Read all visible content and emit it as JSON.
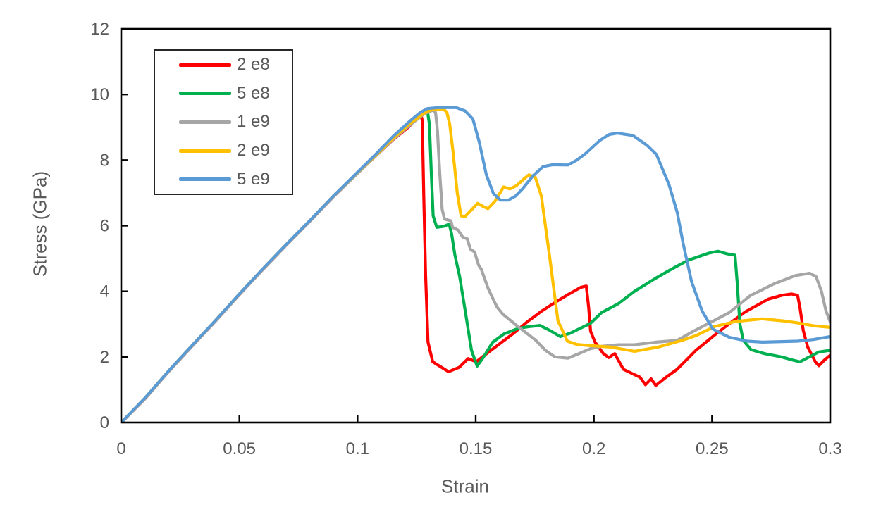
{
  "chart_data": {
    "type": "line",
    "title": "",
    "xlabel": "Strain",
    "ylabel": "Stress (GPa)",
    "xlim": [
      0,
      0.3
    ],
    "ylim": [
      0,
      12
    ],
    "grid": false,
    "legend_position": "top-left-inside",
    "axis_color": "#000000",
    "tick_text_color": "#595959",
    "x_ticks": {
      "values": [
        0,
        0.05,
        0.1,
        0.15,
        0.2,
        0.25,
        0.3
      ],
      "labels": [
        "0",
        "0.05",
        "0.1",
        "0.15",
        "0.2",
        "0.25",
        "0.3"
      ]
    },
    "y_ticks": {
      "values": [
        0,
        2,
        4,
        6,
        8,
        10,
        12
      ],
      "labels": [
        "0",
        "2",
        "4",
        "6",
        "8",
        "10",
        "12"
      ]
    },
    "series": [
      {
        "name": "2 e8",
        "color": "#FF0000",
        "points": [
          [
            0,
            0
          ],
          [
            0.01,
            0.72
          ],
          [
            0.02,
            1.55
          ],
          [
            0.03,
            2.33
          ],
          [
            0.04,
            3.1
          ],
          [
            0.05,
            3.9
          ],
          [
            0.06,
            4.67
          ],
          [
            0.07,
            5.42
          ],
          [
            0.08,
            6.15
          ],
          [
            0.09,
            6.9
          ],
          [
            0.1,
            7.6
          ],
          [
            0.108,
            8.15
          ],
          [
            0.115,
            8.62
          ],
          [
            0.1215,
            9.0
          ],
          [
            0.1252,
            9.3
          ],
          [
            0.1268,
            9.4
          ],
          [
            0.1274,
            9.2
          ],
          [
            0.128,
            7.0
          ],
          [
            0.1288,
            4.5
          ],
          [
            0.1298,
            2.45
          ],
          [
            0.1318,
            1.85
          ],
          [
            0.1385,
            1.55
          ],
          [
            0.143,
            1.68
          ],
          [
            0.1468,
            1.95
          ],
          [
            0.1502,
            1.85
          ],
          [
            0.155,
            2.12
          ],
          [
            0.1605,
            2.42
          ],
          [
            0.166,
            2.72
          ],
          [
            0.172,
            3.08
          ],
          [
            0.178,
            3.4
          ],
          [
            0.184,
            3.68
          ],
          [
            0.1895,
            3.92
          ],
          [
            0.1945,
            4.12
          ],
          [
            0.1968,
            4.16
          ],
          [
            0.1978,
            3.5
          ],
          [
            0.1986,
            2.78
          ],
          [
            0.2005,
            2.45
          ],
          [
            0.204,
            2.1
          ],
          [
            0.2063,
            1.98
          ],
          [
            0.2088,
            2.1
          ],
          [
            0.2125,
            1.62
          ],
          [
            0.216,
            1.5
          ],
          [
            0.2195,
            1.38
          ],
          [
            0.2218,
            1.15
          ],
          [
            0.2242,
            1.33
          ],
          [
            0.2262,
            1.13
          ],
          [
            0.23,
            1.35
          ],
          [
            0.2352,
            1.62
          ],
          [
            0.2432,
            2.2
          ],
          [
            0.2508,
            2.65
          ],
          [
            0.258,
            3.05
          ],
          [
            0.264,
            3.37
          ],
          [
            0.2738,
            3.76
          ],
          [
            0.2796,
            3.88
          ],
          [
            0.2836,
            3.92
          ],
          [
            0.2862,
            3.88
          ],
          [
            0.2872,
            3.5
          ],
          [
            0.2886,
            2.8
          ],
          [
            0.2905,
            2.3
          ],
          [
            0.2937,
            1.85
          ],
          [
            0.2952,
            1.73
          ],
          [
            0.2975,
            1.9
          ],
          [
            0.3,
            2.05
          ]
        ]
      },
      {
        "name": "5 e8",
        "color": "#00B050",
        "points": [
          [
            0,
            0
          ],
          [
            0.01,
            0.73
          ],
          [
            0.02,
            1.56
          ],
          [
            0.03,
            2.34
          ],
          [
            0.04,
            3.11
          ],
          [
            0.05,
            3.91
          ],
          [
            0.06,
            4.68
          ],
          [
            0.07,
            5.43
          ],
          [
            0.08,
            6.16
          ],
          [
            0.09,
            6.91
          ],
          [
            0.1,
            7.61
          ],
          [
            0.108,
            8.16
          ],
          [
            0.115,
            8.64
          ],
          [
            0.122,
            9.07
          ],
          [
            0.127,
            9.38
          ],
          [
            0.1296,
            9.48
          ],
          [
            0.1304,
            9.1
          ],
          [
            0.1312,
            7.6
          ],
          [
            0.132,
            6.3
          ],
          [
            0.1335,
            5.95
          ],
          [
            0.1365,
            5.98
          ],
          [
            0.1388,
            6.05
          ],
          [
            0.1398,
            5.75
          ],
          [
            0.1412,
            5.1
          ],
          [
            0.1432,
            4.45
          ],
          [
            0.1458,
            3.3
          ],
          [
            0.1482,
            2.2
          ],
          [
            0.1506,
            1.72
          ],
          [
            0.1532,
            1.98
          ],
          [
            0.1572,
            2.45
          ],
          [
            0.162,
            2.7
          ],
          [
            0.168,
            2.87
          ],
          [
            0.1722,
            2.92
          ],
          [
            0.1772,
            2.96
          ],
          [
            0.181,
            2.82
          ],
          [
            0.1858,
            2.62
          ],
          [
            0.19,
            2.72
          ],
          [
            0.1985,
            3.02
          ],
          [
            0.2033,
            3.35
          ],
          [
            0.2103,
            3.62
          ],
          [
            0.2172,
            4.0
          ],
          [
            0.2262,
            4.4
          ],
          [
            0.2322,
            4.65
          ],
          [
            0.24,
            4.95
          ],
          [
            0.2485,
            5.16
          ],
          [
            0.2525,
            5.22
          ],
          [
            0.2565,
            5.14
          ],
          [
            0.2597,
            5.1
          ],
          [
            0.2606,
            4.3
          ],
          [
            0.2618,
            3.0
          ],
          [
            0.2632,
            2.5
          ],
          [
            0.2665,
            2.22
          ],
          [
            0.2722,
            2.1
          ],
          [
            0.2793,
            2.0
          ],
          [
            0.2843,
            1.9
          ],
          [
            0.2872,
            1.85
          ],
          [
            0.2912,
            2.0
          ],
          [
            0.2952,
            2.15
          ],
          [
            0.3,
            2.2
          ]
        ]
      },
      {
        "name": "1 e9",
        "color": "#A6A6A6",
        "points": [
          [
            0,
            0
          ],
          [
            0.01,
            0.72
          ],
          [
            0.02,
            1.55
          ],
          [
            0.03,
            2.33
          ],
          [
            0.04,
            3.1
          ],
          [
            0.05,
            3.9
          ],
          [
            0.06,
            4.67
          ],
          [
            0.07,
            5.42
          ],
          [
            0.08,
            6.15
          ],
          [
            0.09,
            6.9
          ],
          [
            0.1,
            7.6
          ],
          [
            0.108,
            8.15
          ],
          [
            0.115,
            8.63
          ],
          [
            0.122,
            9.06
          ],
          [
            0.128,
            9.4
          ],
          [
            0.1318,
            9.52
          ],
          [
            0.133,
            9.45
          ],
          [
            0.1338,
            8.9
          ],
          [
            0.1348,
            7.6
          ],
          [
            0.1358,
            6.5
          ],
          [
            0.1368,
            6.2
          ],
          [
            0.1395,
            6.15
          ],
          [
            0.1402,
            5.95
          ],
          [
            0.1425,
            5.87
          ],
          [
            0.1445,
            5.65
          ],
          [
            0.1464,
            5.6
          ],
          [
            0.1478,
            5.28
          ],
          [
            0.1495,
            5.2
          ],
          [
            0.1512,
            4.8
          ],
          [
            0.1524,
            4.67
          ],
          [
            0.1552,
            4.1
          ],
          [
            0.1568,
            3.85
          ],
          [
            0.159,
            3.52
          ],
          [
            0.1615,
            3.3
          ],
          [
            0.1675,
            2.95
          ],
          [
            0.1755,
            2.5
          ],
          [
            0.1795,
            2.2
          ],
          [
            0.1835,
            2.0
          ],
          [
            0.189,
            1.96
          ],
          [
            0.1937,
            2.1
          ],
          [
            0.1985,
            2.25
          ],
          [
            0.2033,
            2.32
          ],
          [
            0.2103,
            2.37
          ],
          [
            0.2172,
            2.37
          ],
          [
            0.2262,
            2.45
          ],
          [
            0.2352,
            2.5
          ],
          [
            0.2413,
            2.75
          ],
          [
            0.2493,
            3.05
          ],
          [
            0.2573,
            3.35
          ],
          [
            0.2662,
            3.87
          ],
          [
            0.2763,
            4.23
          ],
          [
            0.2853,
            4.48
          ],
          [
            0.2913,
            4.55
          ],
          [
            0.294,
            4.45
          ],
          [
            0.2963,
            4.0
          ],
          [
            0.2982,
            3.4
          ],
          [
            0.3,
            3.07
          ]
        ]
      },
      {
        "name": "2 e9",
        "color": "#FFC000",
        "points": [
          [
            0,
            0
          ],
          [
            0.01,
            0.74
          ],
          [
            0.02,
            1.57
          ],
          [
            0.03,
            2.35
          ],
          [
            0.04,
            3.12
          ],
          [
            0.05,
            3.92
          ],
          [
            0.06,
            4.69
          ],
          [
            0.07,
            5.44
          ],
          [
            0.08,
            6.17
          ],
          [
            0.09,
            6.92
          ],
          [
            0.1,
            7.62
          ],
          [
            0.108,
            8.17
          ],
          [
            0.115,
            8.66
          ],
          [
            0.122,
            9.1
          ],
          [
            0.128,
            9.42
          ],
          [
            0.131,
            9.53
          ],
          [
            0.1365,
            9.55
          ],
          [
            0.1378,
            9.45
          ],
          [
            0.139,
            9.1
          ],
          [
            0.1405,
            8.2
          ],
          [
            0.1422,
            7.0
          ],
          [
            0.1438,
            6.3
          ],
          [
            0.1455,
            6.28
          ],
          [
            0.1478,
            6.45
          ],
          [
            0.1508,
            6.68
          ],
          [
            0.1528,
            6.6
          ],
          [
            0.1552,
            6.52
          ],
          [
            0.1582,
            6.75
          ],
          [
            0.1618,
            7.18
          ],
          [
            0.1645,
            7.12
          ],
          [
            0.1672,
            7.22
          ],
          [
            0.1708,
            7.45
          ],
          [
            0.1725,
            7.55
          ],
          [
            0.1752,
            7.48
          ],
          [
            0.1778,
            6.9
          ],
          [
            0.1812,
            5.1
          ],
          [
            0.1848,
            3.1
          ],
          [
            0.1888,
            2.48
          ],
          [
            0.1928,
            2.38
          ],
          [
            0.1972,
            2.35
          ],
          [
            0.2072,
            2.3
          ],
          [
            0.2172,
            2.17
          ],
          [
            0.2272,
            2.3
          ],
          [
            0.2372,
            2.5
          ],
          [
            0.2432,
            2.65
          ],
          [
            0.2512,
            2.93
          ],
          [
            0.26,
            3.08
          ],
          [
            0.2712,
            3.16
          ],
          [
            0.28,
            3.1
          ],
          [
            0.286,
            3.04
          ],
          [
            0.293,
            2.95
          ],
          [
            0.3,
            2.9
          ]
        ]
      },
      {
        "name": "5 e9",
        "color": "#5B9BD5",
        "points": [
          [
            0,
            0
          ],
          [
            0.01,
            0.74
          ],
          [
            0.02,
            1.57
          ],
          [
            0.03,
            2.35
          ],
          [
            0.04,
            3.12
          ],
          [
            0.05,
            3.92
          ],
          [
            0.06,
            4.69
          ],
          [
            0.07,
            5.44
          ],
          [
            0.08,
            6.17
          ],
          [
            0.09,
            6.92
          ],
          [
            0.1,
            7.63
          ],
          [
            0.108,
            8.2
          ],
          [
            0.115,
            8.72
          ],
          [
            0.122,
            9.18
          ],
          [
            0.1265,
            9.45
          ],
          [
            0.1295,
            9.57
          ],
          [
            0.134,
            9.6
          ],
          [
            0.1418,
            9.6
          ],
          [
            0.1455,
            9.5
          ],
          [
            0.1488,
            9.25
          ],
          [
            0.1515,
            8.55
          ],
          [
            0.1545,
            7.55
          ],
          [
            0.1575,
            6.98
          ],
          [
            0.1605,
            6.78
          ],
          [
            0.1638,
            6.78
          ],
          [
            0.1668,
            6.9
          ],
          [
            0.1698,
            7.12
          ],
          [
            0.1742,
            7.52
          ],
          [
            0.1785,
            7.8
          ],
          [
            0.1825,
            7.86
          ],
          [
            0.189,
            7.85
          ],
          [
            0.1928,
            8.0
          ],
          [
            0.1965,
            8.2
          ],
          [
            0.2025,
            8.6
          ],
          [
            0.2065,
            8.78
          ],
          [
            0.21,
            8.82
          ],
          [
            0.2165,
            8.75
          ],
          [
            0.2225,
            8.45
          ],
          [
            0.2265,
            8.17
          ],
          [
            0.2318,
            7.25
          ],
          [
            0.2353,
            6.4
          ],
          [
            0.2378,
            5.45
          ],
          [
            0.2413,
            4.3
          ],
          [
            0.2458,
            3.4
          ],
          [
            0.2503,
            2.85
          ],
          [
            0.2572,
            2.6
          ],
          [
            0.265,
            2.48
          ],
          [
            0.2713,
            2.45
          ],
          [
            0.2862,
            2.48
          ],
          [
            0.293,
            2.53
          ],
          [
            0.3,
            2.62
          ]
        ]
      }
    ]
  },
  "legend": {
    "items": [
      "2 e8",
      "5 e8",
      "1 e9",
      "2 e9",
      "5 e9"
    ]
  }
}
